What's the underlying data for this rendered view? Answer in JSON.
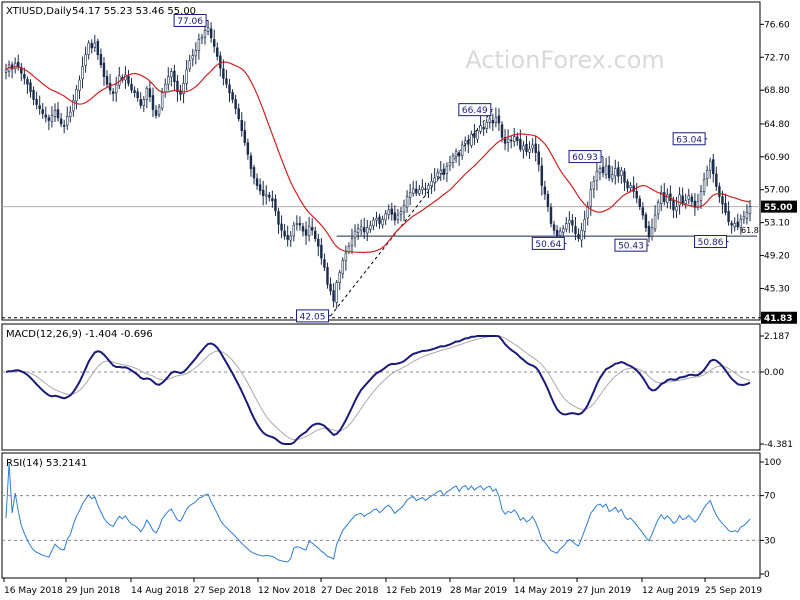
{
  "colors": {
    "background": "#ffffff",
    "candles": "#1a2a4a",
    "ma": "#cc2222",
    "macd": "#1a1a7a",
    "macd_signal": "#aaaaaa",
    "rsi": "#2f7dd1",
    "grid": "#888888",
    "label_box": "#1a1a7a",
    "price_tag": "#000000"
  },
  "chart_data": [
    {
      "type": "candlestick",
      "title": "XTIUSD,Daily",
      "ohlc_header": "54.17 55.23 53.46 55.00",
      "watermark": "ActionForex.com",
      "ylim": [
        41.8,
        78.3
      ],
      "y_ticks": [
        "76.60",
        "72.70",
        "68.80",
        "64.80",
        "60.90",
        "57.00",
        "53.10",
        "49.20",
        "45.30",
        "41.83"
      ],
      "last_price": "55.00",
      "fib_label": "61.8",
      "support_level": 51.5,
      "bottom_level": 41.83,
      "x_labels": [
        "16 May 2018",
        "29 Jun 2018",
        "14 Aug 2018",
        "27 Sep 2018",
        "12 Nov 2018",
        "27 Dec 2018",
        "12 Feb 2019",
        "28 Mar 2019",
        "14 May 2019",
        "27 Jun 2019",
        "12 Aug 2019",
        "25 Sep 2019"
      ],
      "annotations": [
        {
          "label": "77.06",
          "index": 66,
          "price": 77.06,
          "position": "left"
        },
        {
          "label": "42.05",
          "index": 106,
          "price": 42.05,
          "position": "left"
        },
        {
          "label": "66.49",
          "index": 159,
          "price": 66.49,
          "position": "left"
        },
        {
          "label": "50.64",
          "index": 183,
          "price": 50.64,
          "position": "left"
        },
        {
          "label": "60.93",
          "index": 195,
          "price": 60.93,
          "position": "left"
        },
        {
          "label": "50.43",
          "index": 210,
          "price": 50.43,
          "position": "left"
        },
        {
          "label": "63.04",
          "index": 229,
          "price": 63.04,
          "position": "left"
        },
        {
          "label": "50.86",
          "index": 236,
          "price": 50.86,
          "position": "left"
        }
      ],
      "series": [
        {
          "name": "XTIUSD",
          "close": [
            71.2,
            71.8,
            71.3,
            72.0,
            71.5,
            70.8,
            70.2,
            69.5,
            68.6,
            67.7,
            67.1,
            66.6,
            66.0,
            65.6,
            65.2,
            65.8,
            66.4,
            65.5,
            64.8,
            64.6,
            65.7,
            66.2,
            67.6,
            68.9,
            70.0,
            71.6,
            73.0,
            74.4,
            73.8,
            74.4,
            73.0,
            71.8,
            70.4,
            69.5,
            68.8,
            68.4,
            69.5,
            70.5,
            70.0,
            70.6,
            69.6,
            68.8,
            68.5,
            67.9,
            67.0,
            67.7,
            69.0,
            68.0,
            66.5,
            65.8,
            66.8,
            68.5,
            69.5,
            70.4,
            71.0,
            69.8,
            68.6,
            68.3,
            69.6,
            71.2,
            72.3,
            72.9,
            73.5,
            74.8,
            75.1,
            75.9,
            76.2,
            75.0,
            74.0,
            72.8,
            71.4,
            70.2,
            69.5,
            68.5,
            67.7,
            66.6,
            65.4,
            64.0,
            62.6,
            61.2,
            59.5,
            58.4,
            57.5,
            56.9,
            56.3,
            56.4,
            56.1,
            55.7,
            54.5,
            52.9,
            52.2,
            51.5,
            51.1,
            51.5,
            52.8,
            53.0,
            52.8,
            52.1,
            51.6,
            52.7,
            52.2,
            51.2,
            50.3,
            48.9,
            47.8,
            45.8,
            45.0,
            43.8,
            46.0,
            47.2,
            48.6,
            49.5,
            50.3,
            51.2,
            52.1,
            52.4,
            52.6,
            52.0,
            52.5,
            52.8,
            53.4,
            53.6,
            53.0,
            53.5,
            54.2,
            54.6,
            54.1,
            53.4,
            54.0,
            54.4,
            55.1,
            56.2,
            56.7,
            57.1,
            56.6,
            57.0,
            57.3,
            57.0,
            57.5,
            58.0,
            58.4,
            59.0,
            59.3,
            58.8,
            59.8,
            60.2,
            61.0,
            61.5,
            61.0,
            62.3,
            62.8,
            62.4,
            63.6,
            63.2,
            64.0,
            64.6,
            64.2,
            65.0,
            65.4,
            64.9,
            65.6,
            64.9,
            63.2,
            62.5,
            63.0,
            62.8,
            63.3,
            62.8,
            61.8,
            62.2,
            61.5,
            61.8,
            62.3,
            61.4,
            60.0,
            57.5,
            56.5,
            55.0,
            53.0,
            52.2,
            51.5,
            52.1,
            52.4,
            53.0,
            53.4,
            52.8,
            51.8,
            51.2,
            52.2,
            53.5,
            55.0,
            57.0,
            58.0,
            59.2,
            59.5,
            59.0,
            59.8,
            58.4,
            58.8,
            59.5,
            58.6,
            59.3,
            57.9,
            57.2,
            57.5,
            56.8,
            56.0,
            55.0,
            54.0,
            52.5,
            51.4,
            52.5,
            54.0,
            55.5,
            56.7,
            55.6,
            56.4,
            55.7,
            54.6,
            55.0,
            56.4,
            55.4,
            55.7,
            56.3,
            55.6,
            54.9,
            55.6,
            56.8,
            58.2,
            59.3,
            60.4,
            58.9,
            57.4,
            56.2,
            55.3,
            54.3,
            53.2,
            52.8,
            53.0,
            52.6,
            53.5,
            53.8,
            54.3,
            55.0
          ]
        },
        {
          "name": "MA",
          "values": []
        }
      ]
    },
    {
      "type": "line",
      "title": "MACD(12,26,9) -1.404 -0.696",
      "ylim": [
        -4.381,
        2.187
      ],
      "y_ticks": [
        "2.187",
        "0.00",
        "-4.381"
      ],
      "series": [
        {
          "name": "MACD",
          "values": []
        },
        {
          "name": "Signal",
          "values": []
        }
      ]
    },
    {
      "type": "line",
      "title": "RSI(14) 53.2141",
      "ylim": [
        0,
        100
      ],
      "y_ticks": [
        "100",
        "70",
        "30",
        "0"
      ],
      "levels": [
        70,
        30
      ],
      "series": [
        {
          "name": "RSI",
          "values": []
        }
      ]
    }
  ]
}
